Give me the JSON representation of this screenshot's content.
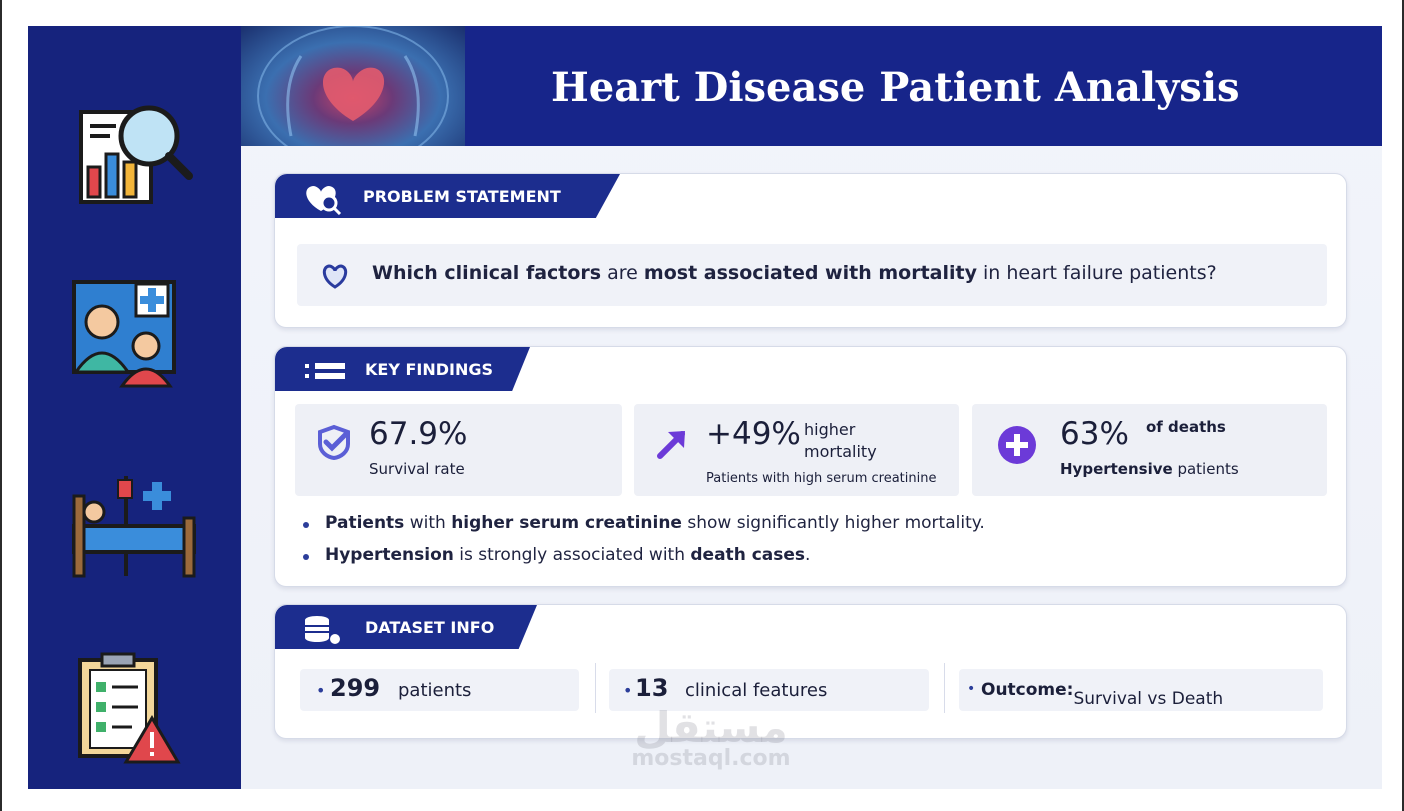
{
  "title": "Heart Disease Patient Analysis",
  "sidebar": {
    "icons": [
      "analytics-report-icon",
      "doctor-patient-icon",
      "hospital-bed-icon",
      "medical-checklist-warning-icon"
    ]
  },
  "problem": {
    "tab_label": "PROBLEM STATEMENT",
    "tab_icon": "heart-search-icon",
    "q_part1": "Which clinical factors",
    "q_part2": " are ",
    "q_part3": "most associated with mortality",
    "q_part4": " in heart failure patients?"
  },
  "findings": {
    "tab_label": "KEY FINDINGS",
    "stats": {
      "survival": {
        "value": "67.9%",
        "label": "Survival rate"
      },
      "creatinine": {
        "value": "+49%",
        "label_line1": "higher",
        "label_line2": "mortality",
        "sub": "Patients with high serum creatinine"
      },
      "hypertension": {
        "value": "63%",
        "label": "of deaths",
        "sub_bold": "Hypertensive",
        "sub_rest": " patients"
      }
    },
    "bullets": [
      {
        "b1": "Patients",
        "t1": " with ",
        "b2": "higher serum creatinine",
        "t2": " show significantly higher mortality."
      },
      {
        "b1": "Hypertension",
        "t1": " is strongly associated with ",
        "b2": "death cases",
        "t2": "."
      }
    ]
  },
  "dataset": {
    "tab_label": "DATASET INFO",
    "patients_num": "299",
    "patients_label": "patients",
    "features_num": "13",
    "features_label": "clinical features",
    "outcome_label": "Outcome:",
    "outcome_value": " Survival vs Death"
  },
  "watermark": {
    "arabic": "مستقل",
    "english": "mostaql.com"
  },
  "colors": {
    "navy": "#16237d",
    "tab": "#1c2d8e",
    "purple": "#6c3ad8"
  }
}
